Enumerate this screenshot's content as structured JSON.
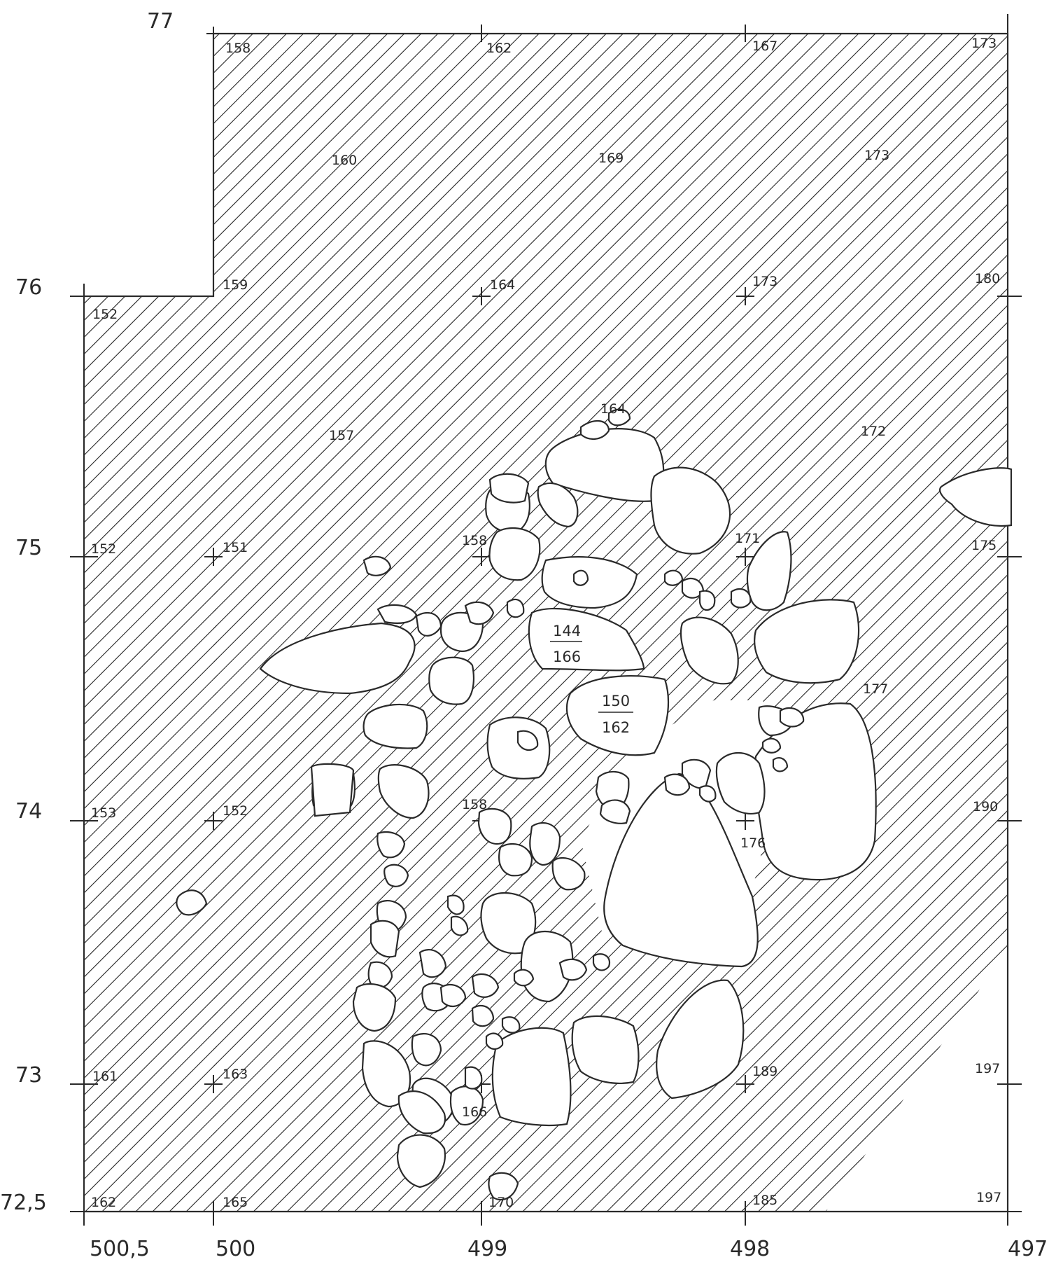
{
  "plan": {
    "y_axis_labels": [
      "77",
      "76",
      "75",
      "74",
      "73",
      "72,5"
    ],
    "x_axis_labels": [
      "500,5",
      "500",
      "499",
      "498",
      "497"
    ],
    "elevations": [
      "158",
      "162",
      "167",
      "173",
      "160",
      "169",
      "173",
      "159",
      "164",
      "173",
      "180",
      "152",
      "157",
      "164",
      "172",
      "152",
      "151",
      "158",
      "171",
      "175",
      "177",
      "153",
      "152",
      "158",
      "176",
      "190",
      "161",
      "163",
      "166",
      "189",
      "197",
      "162",
      "165",
      "170",
      "185",
      "197"
    ],
    "stone_labels": [
      {
        "top": "144",
        "bottom": "166"
      },
      {
        "top": "150",
        "bottom": "162"
      }
    ]
  }
}
